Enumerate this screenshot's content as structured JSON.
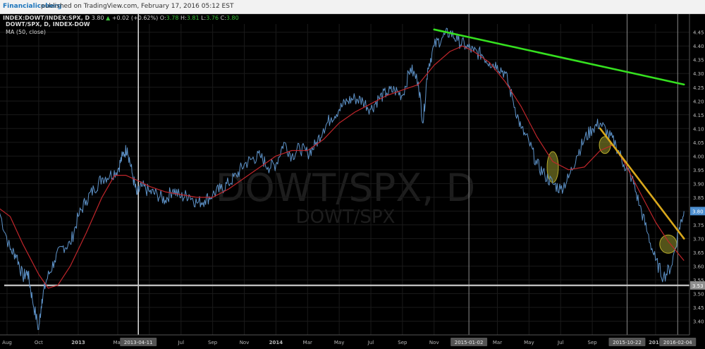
{
  "header": {
    "brand": "Financialiceberg",
    "published": "published on TradingView.com, February 17, 2016 05:12 EST"
  },
  "symbol_line": {
    "symbol": "INDEX:DOWT/INDEX:SPX, D",
    "last": "3.80",
    "change": "+0.02 (+0.62%)",
    "o_label": "O:",
    "o_value": "3.78",
    "h_label": "H:",
    "h_value": "3.81",
    "l_label": "L:",
    "l_value": "3.76",
    "c_label": "C:",
    "c_value": "3.80"
  },
  "legend": {
    "title": "DOWT/SPX, D, INDEX-DOW",
    "indicator": "MA (50, close)"
  },
  "watermark": {
    "main": "DOWT/SPX, D",
    "sub": "DOWT/SPX"
  },
  "colors": {
    "price": "#5e93c9",
    "ma": "#c0262b",
    "green_trend": "#35e01f",
    "yellow_trend": "#d9a81c",
    "highlight_fill": "#8b8a2a",
    "support": "#c8c8c8",
    "background": "#000000",
    "price_tag": "#4d8fd0"
  },
  "chart_data": {
    "type": "line",
    "title": "DOWT/SPX, D, INDEX-DOW",
    "ylim": [
      3.35,
      4.48
    ],
    "y_ticks": [
      3.4,
      3.45,
      3.5,
      3.55,
      3.6,
      3.65,
      3.7,
      3.75,
      3.8,
      3.85,
      3.9,
      3.95,
      4.0,
      4.05,
      4.1,
      4.15,
      4.2,
      4.25,
      4.3,
      4.35,
      4.4,
      4.45
    ],
    "x_ticks": [
      {
        "label": "Aug",
        "t": 0.0
      },
      {
        "label": "Oct",
        "t": 2.0
      },
      {
        "label": "2013",
        "t": 4.5
      },
      {
        "label": "Mar",
        "t": 7.0
      },
      {
        "label": "May",
        "t": 9.0
      },
      {
        "label": "Jul",
        "t": 11.0
      },
      {
        "label": "Sep",
        "t": 13.0
      },
      {
        "label": "Nov",
        "t": 15.0
      },
      {
        "label": "2014",
        "t": 17.0
      },
      {
        "label": "Mar",
        "t": 19.0
      },
      {
        "label": "May",
        "t": 21.0
      },
      {
        "label": "Jul",
        "t": 23.0
      },
      {
        "label": "Sep",
        "t": 25.0
      },
      {
        "label": "Nov",
        "t": 27.0
      },
      {
        "label": "Mar",
        "t": 31.0
      },
      {
        "label": "May",
        "t": 33.0
      },
      {
        "label": "Jul",
        "t": 35.0
      },
      {
        "label": "Sep",
        "t": 37.0
      },
      {
        "label": "2016",
        "t": 41.0
      }
    ],
    "time_axis": {
      "start": "2012-08",
      "end": "2016-02"
    },
    "series": [
      {
        "name": "DOWT/SPX",
        "role": "price",
        "points": [
          [
            -0.5,
            3.8
          ],
          [
            0.2,
            3.66
          ],
          [
            0.6,
            3.64
          ],
          [
            1.0,
            3.56
          ],
          [
            1.3,
            3.58
          ],
          [
            1.6,
            3.48
          ],
          [
            2.0,
            3.37
          ],
          [
            2.2,
            3.48
          ],
          [
            2.5,
            3.55
          ],
          [
            3.0,
            3.62
          ],
          [
            3.5,
            3.67
          ],
          [
            4.0,
            3.68
          ],
          [
            4.5,
            3.78
          ],
          [
            5.0,
            3.84
          ],
          [
            5.5,
            3.88
          ],
          [
            6.0,
            3.92
          ],
          [
            6.5,
            3.93
          ],
          [
            7.0,
            3.95
          ],
          [
            7.3,
            4.0
          ],
          [
            7.6,
            4.03
          ],
          [
            7.9,
            3.94
          ],
          [
            8.2,
            3.86
          ],
          [
            8.5,
            3.89
          ],
          [
            9.0,
            3.87
          ],
          [
            9.5,
            3.86
          ],
          [
            10.0,
            3.84
          ],
          [
            10.5,
            3.88
          ],
          [
            11.0,
            3.85
          ],
          [
            11.5,
            3.86
          ],
          [
            12.0,
            3.83
          ],
          [
            12.5,
            3.84
          ],
          [
            13.0,
            3.86
          ],
          [
            13.5,
            3.88
          ],
          [
            14.0,
            3.9
          ],
          [
            14.5,
            3.93
          ],
          [
            15.0,
            3.97
          ],
          [
            15.5,
            3.99
          ],
          [
            16.0,
            4.0
          ],
          [
            16.5,
            3.96
          ],
          [
            17.0,
            3.97
          ],
          [
            17.5,
            4.05
          ],
          [
            18.0,
            4.0
          ],
          [
            18.5,
            4.03
          ],
          [
            19.0,
            4.01
          ],
          [
            19.5,
            4.04
          ],
          [
            20.0,
            4.1
          ],
          [
            20.5,
            4.14
          ],
          [
            21.0,
            4.17
          ],
          [
            21.5,
            4.2
          ],
          [
            22.0,
            4.21
          ],
          [
            22.5,
            4.2
          ],
          [
            23.0,
            4.17
          ],
          [
            23.5,
            4.21
          ],
          [
            24.0,
            4.23
          ],
          [
            24.5,
            4.24
          ],
          [
            25.0,
            4.22
          ],
          [
            25.5,
            4.32
          ],
          [
            26.0,
            4.27
          ],
          [
            26.3,
            4.12
          ],
          [
            26.6,
            4.32
          ],
          [
            27.0,
            4.4
          ],
          [
            27.5,
            4.43
          ],
          [
            28.0,
            4.45
          ],
          [
            28.5,
            4.42
          ],
          [
            29.0,
            4.4
          ],
          [
            29.5,
            4.38
          ],
          [
            30.0,
            4.37
          ],
          [
            30.5,
            4.34
          ],
          [
            31.0,
            4.33
          ],
          [
            31.5,
            4.3
          ],
          [
            32.0,
            4.2
          ],
          [
            32.5,
            4.1
          ],
          [
            33.0,
            4.05
          ],
          [
            33.5,
            3.97
          ],
          [
            34.0,
            3.93
          ],
          [
            34.5,
            3.9
          ],
          [
            35.0,
            3.88
          ],
          [
            35.5,
            3.92
          ],
          [
            36.0,
            4.0
          ],
          [
            36.5,
            4.06
          ],
          [
            37.0,
            4.1
          ],
          [
            37.5,
            4.12
          ],
          [
            38.0,
            4.08
          ],
          [
            38.5,
            4.04
          ],
          [
            39.0,
            3.97
          ],
          [
            39.5,
            3.92
          ],
          [
            40.0,
            3.82
          ],
          [
            40.5,
            3.72
          ],
          [
            41.0,
            3.62
          ],
          [
            41.5,
            3.56
          ],
          [
            42.0,
            3.6
          ],
          [
            42.5,
            3.74
          ],
          [
            42.8,
            3.8
          ]
        ]
      },
      {
        "name": "MA (50, close)",
        "role": "ma",
        "points": [
          [
            -0.5,
            3.81
          ],
          [
            0.2,
            3.78
          ],
          [
            1.0,
            3.68
          ],
          [
            2.0,
            3.57
          ],
          [
            2.6,
            3.52
          ],
          [
            3.2,
            3.53
          ],
          [
            4.0,
            3.6
          ],
          [
            5.0,
            3.72
          ],
          [
            6.0,
            3.85
          ],
          [
            6.8,
            3.93
          ],
          [
            7.5,
            3.93
          ],
          [
            8.3,
            3.91
          ],
          [
            9.0,
            3.89
          ],
          [
            10.0,
            3.87
          ],
          [
            11.0,
            3.86
          ],
          [
            12.0,
            3.85
          ],
          [
            13.0,
            3.85
          ],
          [
            14.0,
            3.88
          ],
          [
            15.0,
            3.92
          ],
          [
            16.0,
            3.96
          ],
          [
            17.0,
            4.0
          ],
          [
            18.0,
            4.02
          ],
          [
            19.0,
            4.02
          ],
          [
            20.0,
            4.06
          ],
          [
            21.0,
            4.12
          ],
          [
            22.0,
            4.16
          ],
          [
            23.0,
            4.19
          ],
          [
            24.0,
            4.22
          ],
          [
            25.0,
            4.24
          ],
          [
            26.0,
            4.26
          ],
          [
            27.0,
            4.33
          ],
          [
            28.0,
            4.38
          ],
          [
            28.8,
            4.4
          ],
          [
            29.5,
            4.38
          ],
          [
            30.5,
            4.34
          ],
          [
            31.5,
            4.27
          ],
          [
            32.5,
            4.18
          ],
          [
            33.5,
            4.07
          ],
          [
            34.5,
            3.98
          ],
          [
            35.5,
            3.95
          ],
          [
            36.5,
            3.96
          ],
          [
            37.5,
            4.02
          ],
          [
            38.3,
            4.04
          ],
          [
            39.0,
            3.98
          ],
          [
            40.0,
            3.87
          ],
          [
            41.0,
            3.76
          ],
          [
            41.8,
            3.69
          ],
          [
            42.8,
            3.62
          ]
        ]
      }
    ],
    "trendlines": [
      {
        "name": "green-trendline",
        "from": [
          27.0,
          4.46
        ],
        "to": [
          42.8,
          4.26
        ]
      },
      {
        "name": "yellow-trendline",
        "from": [
          37.5,
          4.1
        ],
        "to": [
          42.8,
          3.7
        ]
      }
    ],
    "highlight_zones": [
      {
        "t": 34.5,
        "y": 3.96
      },
      {
        "t": 37.8,
        "y": 4.04
      },
      {
        "t": 41.8,
        "y": 3.68
      }
    ],
    "support_level": 3.53,
    "support_label": "3.53",
    "current_price_label": "3.80",
    "current_price": 3.8,
    "markers": [
      {
        "t": 8.3,
        "label": "2013-04-11"
      },
      {
        "t": 29.2,
        "label": "2015-01-02"
      },
      {
        "t": 39.2,
        "label": "2015-10-22"
      },
      {
        "t": 42.4,
        "label": "2016-02-04"
      }
    ]
  }
}
